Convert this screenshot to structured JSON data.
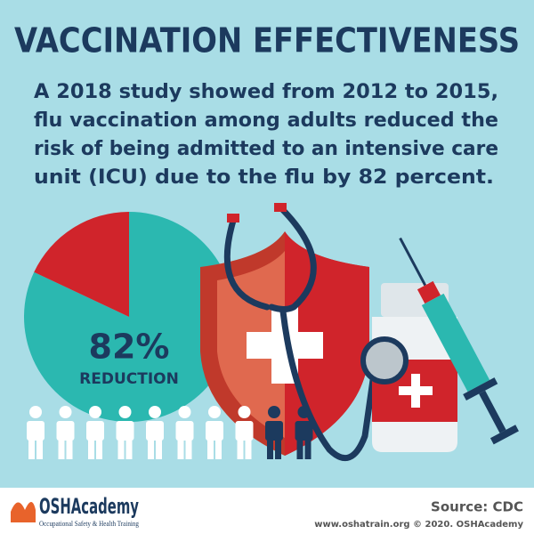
{
  "title": "VACCINATION EFFECTIVENESS",
  "body": [
    "A 2018 study showed from 2012 to 2015,",
    "flu vaccination among adults reduced the",
    "risk of being admitted to an intensive care",
    "unit (ICU) due to the flu by 82 percent."
  ],
  "chart_data": {
    "type": "pie",
    "values": [
      82,
      18
    ],
    "value_labels": [
      "82%",
      null
    ],
    "colors": [
      "#2bb8b0",
      "#d0242b"
    ],
    "annotation": "REDUCTION"
  },
  "footer": {
    "logo": "OSHAcademy",
    "logo_tagline": "Occupational Safety & Health Training",
    "source": "Source: CDC",
    "credit": "www.oshatrain.org © 2020. OSHAcademy"
  }
}
